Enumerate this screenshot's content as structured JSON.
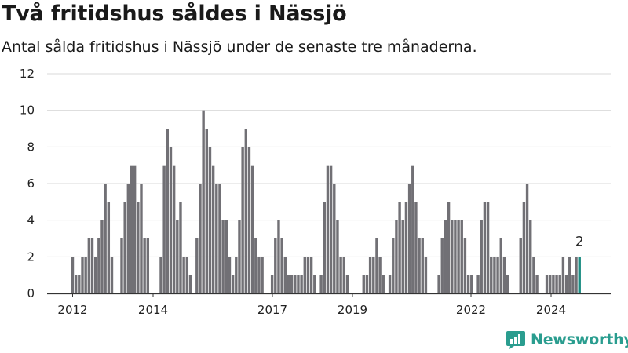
{
  "title": "Två fritidshus såldes i Nässjö",
  "subtitle": "Antal sålda fritidshus i Nässjö under de senaste tre månaderna.",
  "brand": "Newsworthy",
  "colors": {
    "bar": "#717075",
    "highlight": "#1a8c82",
    "grid": "#d9d9d9",
    "brand": "#2a9d8f"
  },
  "chart_data": {
    "type": "bar",
    "title": "Två fritidshus såldes i Nässjö",
    "subtitle": "Antal sålda fritidshus i Nässjö under de senaste tre månaderna.",
    "xlabel": "",
    "ylabel": "",
    "ylim": [
      0,
      12
    ],
    "yticks": [
      0,
      2,
      4,
      6,
      8,
      10,
      12
    ],
    "xtick_labels": [
      "2012",
      "2014",
      "2017",
      "2019",
      "2022",
      "2024"
    ],
    "grid": true,
    "last_value_label": "2",
    "values": [
      2,
      1,
      1,
      2,
      2,
      3,
      3,
      2,
      3,
      4,
      6,
      5,
      2,
      0,
      0,
      3,
      5,
      6,
      7,
      7,
      5,
      6,
      3,
      3,
      0,
      0,
      0,
      2,
      7,
      9,
      8,
      7,
      4,
      5,
      2,
      2,
      1,
      0,
      3,
      6,
      10,
      9,
      8,
      7,
      6,
      6,
      4,
      4,
      2,
      1,
      2,
      4,
      8,
      9,
      8,
      7,
      3,
      2,
      2,
      0,
      0,
      1,
      3,
      4,
      3,
      2,
      1,
      1,
      1,
      1,
      1,
      2,
      2,
      2,
      1,
      0,
      1,
      5,
      7,
      7,
      6,
      4,
      2,
      2,
      1,
      0,
      0,
      0,
      0,
      1,
      1,
      2,
      2,
      3,
      2,
      1,
      0,
      1,
      3,
      4,
      5,
      4,
      5,
      6,
      7,
      5,
      3,
      3,
      2,
      0,
      0,
      0,
      1,
      3,
      4,
      5,
      4,
      4,
      4,
      4,
      3,
      1,
      1,
      0,
      1,
      4,
      5,
      5,
      2,
      2,
      2,
      3,
      2,
      1,
      0,
      0,
      0,
      3,
      5,
      6,
      4,
      2,
      1,
      0,
      0,
      1,
      1,
      1,
      1,
      1,
      2,
      1,
      2,
      1,
      2,
      2
    ]
  }
}
